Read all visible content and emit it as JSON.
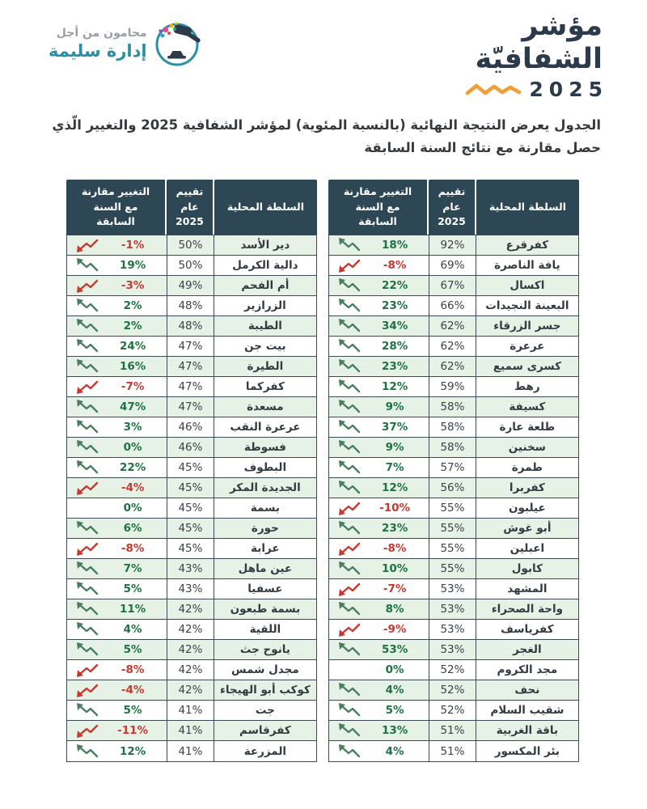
{
  "logo": {
    "tagline": "محامون من أجل",
    "name": "إدارة سليمة"
  },
  "brand": {
    "title_line1": "مؤشر",
    "title_line2": "الشفافيّة",
    "year": "2025"
  },
  "intro": {
    "line1": "الجدول يعرض النتيجة النهائية (بالنسبة المئوية) لمؤشر الشفافية 2025 والتغيير الّذي",
    "line2": "حصل مقارنة مع نتائج السنة السابقة"
  },
  "columns": {
    "authority": "السلطة المحلية",
    "rating": "تقييم عام 2025",
    "change": "التغيير مقارنة مع السنة السابقة"
  },
  "icon_names": {
    "up": "trend-up-icon",
    "down": "trend-down-icon",
    "logo": "gavel-logo-icon",
    "wave": "zigzag-wave-icon"
  },
  "colors": {
    "header_bg": "#2e4755",
    "border": "#3b4a53",
    "row_alt": "#e6f2e6",
    "positive": "#1d7343",
    "positive_icon": "#4b7d63",
    "negative": "#c43a31",
    "accent_orange": "#f29d38",
    "brand_navy": "#2c3b4b",
    "logo_teal": "#2b8fa6"
  },
  "tables": {
    "right": [
      {
        "name": "كفرقرع",
        "rating": "92%",
        "change": "18%",
        "trend": "up"
      },
      {
        "name": "يافة الناصرة",
        "rating": "69%",
        "change": "-8%",
        "trend": "down"
      },
      {
        "name": "اكسال",
        "rating": "67%",
        "change": "22%",
        "trend": "up"
      },
      {
        "name": "البعينة النجيدات",
        "rating": "66%",
        "change": "23%",
        "trend": "up"
      },
      {
        "name": "جسر الزرقاء",
        "rating": "62%",
        "change": "34%",
        "trend": "up"
      },
      {
        "name": "عرعرة",
        "rating": "62%",
        "change": "28%",
        "trend": "up"
      },
      {
        "name": "كسرى سميع",
        "rating": "62%",
        "change": "23%",
        "trend": "up"
      },
      {
        "name": "رهط",
        "rating": "59%",
        "change": "12%",
        "trend": "up"
      },
      {
        "name": "كسيفة",
        "rating": "58%",
        "change": "9%",
        "trend": "up"
      },
      {
        "name": "طلعة عارة",
        "rating": "58%",
        "change": "37%",
        "trend": "up"
      },
      {
        "name": "سخنين",
        "rating": "58%",
        "change": "9%",
        "trend": "up"
      },
      {
        "name": "طمرة",
        "rating": "57%",
        "change": "7%",
        "trend": "up"
      },
      {
        "name": "كفربرا",
        "rating": "56%",
        "change": "12%",
        "trend": "up"
      },
      {
        "name": "عيلبون",
        "rating": "55%",
        "change": "-10%",
        "trend": "down"
      },
      {
        "name": "أبو غوش",
        "rating": "55%",
        "change": "23%",
        "trend": "up"
      },
      {
        "name": "اعبلين",
        "rating": "55%",
        "change": "-8%",
        "trend": "down"
      },
      {
        "name": "كابول",
        "rating": "55%",
        "change": "10%",
        "trend": "up"
      },
      {
        "name": "المشهد",
        "rating": "53%",
        "change": "-7%",
        "trend": "down"
      },
      {
        "name": "واحة الصحراء",
        "rating": "53%",
        "change": "8%",
        "trend": "up"
      },
      {
        "name": "كفرياسف",
        "rating": "53%",
        "change": "-9%",
        "trend": "down"
      },
      {
        "name": "الغجر",
        "rating": "53%",
        "change": "53%",
        "trend": "up"
      },
      {
        "name": "مجد الكروم",
        "rating": "52%",
        "change": "0%",
        "trend": "none"
      },
      {
        "name": "نحف",
        "rating": "52%",
        "change": "4%",
        "trend": "up"
      },
      {
        "name": "شقيب السلام",
        "rating": "52%",
        "change": "5%",
        "trend": "up"
      },
      {
        "name": "باقة الغربية",
        "rating": "51%",
        "change": "13%",
        "trend": "up"
      },
      {
        "name": "بئر المكسور",
        "rating": "51%",
        "change": "4%",
        "trend": "up"
      }
    ],
    "left": [
      {
        "name": "دير الأسد",
        "rating": "50%",
        "change": "-1%",
        "trend": "down"
      },
      {
        "name": "دالية الكرمل",
        "rating": "50%",
        "change": "19%",
        "trend": "up"
      },
      {
        "name": "أم الفحم",
        "rating": "49%",
        "change": "-3%",
        "trend": "down"
      },
      {
        "name": "الزرازير",
        "rating": "48%",
        "change": "2%",
        "trend": "up"
      },
      {
        "name": "الطيبة",
        "rating": "48%",
        "change": "2%",
        "trend": "up"
      },
      {
        "name": "بيت جن",
        "rating": "47%",
        "change": "24%",
        "trend": "up"
      },
      {
        "name": "الطيرة",
        "rating": "47%",
        "change": "16%",
        "trend": "up"
      },
      {
        "name": "كفركما",
        "rating": "47%",
        "change": "-7%",
        "trend": "down"
      },
      {
        "name": "مسعدة",
        "rating": "47%",
        "change": "47%",
        "trend": "up"
      },
      {
        "name": "عرعرة النقب",
        "rating": "46%",
        "change": "3%",
        "trend": "up"
      },
      {
        "name": "فسوطة",
        "rating": "46%",
        "change": "0%",
        "trend": "up"
      },
      {
        "name": "البطوف",
        "rating": "45%",
        "change": "22%",
        "trend": "up"
      },
      {
        "name": "الجديدة المكر",
        "rating": "45%",
        "change": "-4%",
        "trend": "down"
      },
      {
        "name": "بسمة",
        "rating": "45%",
        "change": "0%",
        "trend": "none"
      },
      {
        "name": "حورة",
        "rating": "45%",
        "change": "6%",
        "trend": "up"
      },
      {
        "name": "عرابة",
        "rating": "45%",
        "change": "-8%",
        "trend": "down"
      },
      {
        "name": "عين ماهل",
        "rating": "43%",
        "change": "7%",
        "trend": "up"
      },
      {
        "name": "عسفيا",
        "rating": "43%",
        "change": "5%",
        "trend": "up"
      },
      {
        "name": "بسمة طبعون",
        "rating": "42%",
        "change": "11%",
        "trend": "up"
      },
      {
        "name": "اللقية",
        "rating": "42%",
        "change": "4%",
        "trend": "up"
      },
      {
        "name": "يانوح جث",
        "rating": "42%",
        "change": "5%",
        "trend": "up"
      },
      {
        "name": "مجدل شمس",
        "rating": "42%",
        "change": "-8%",
        "trend": "down"
      },
      {
        "name": "كوكب أبو الهيجاء",
        "rating": "42%",
        "change": "-4%",
        "trend": "down"
      },
      {
        "name": "جت",
        "rating": "41%",
        "change": "5%",
        "trend": "up"
      },
      {
        "name": "كفرقاسم",
        "rating": "41%",
        "change": "-11%",
        "trend": "down"
      },
      {
        "name": "المزرعة",
        "rating": "41%",
        "change": "12%",
        "trend": "up"
      }
    ]
  }
}
